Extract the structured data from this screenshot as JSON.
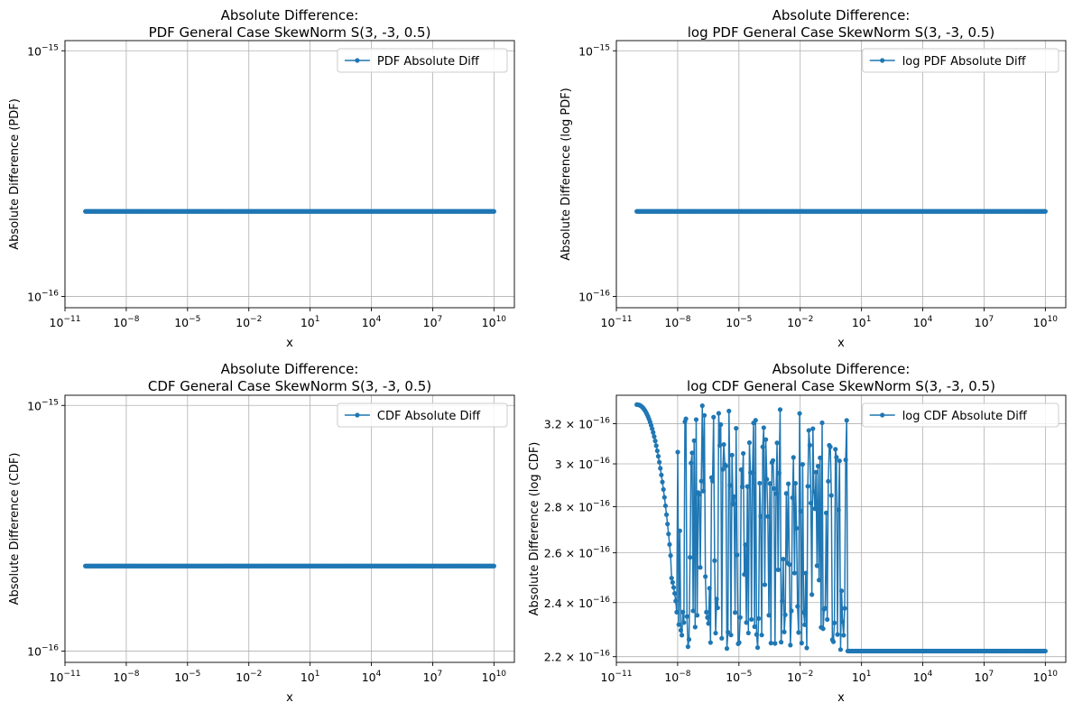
{
  "colors": {
    "series": "#1f77b4",
    "grid": "#b0b0b0",
    "frame": "#000000",
    "legend_border": "#cccccc"
  },
  "chart_data": [
    {
      "type": "line",
      "title_lines": [
        "Absolute Difference:",
        "PDF General Case SkewNorm S(3, -3, 0.5)"
      ],
      "xlabel": "x",
      "ylabel": "Absolute Difference (PDF)",
      "xscale": "log",
      "yscale": "log",
      "xlim": [
        1e-11,
        100000000000.0
      ],
      "ylim": [
        9e-17,
        1.1e-15
      ],
      "grid": true,
      "legend_position": "upper right",
      "xticks": [
        {
          "base": "10",
          "exp": "−11",
          "value": 1e-11
        },
        {
          "base": "10",
          "exp": "−8",
          "value": 1e-08
        },
        {
          "base": "10",
          "exp": "−5",
          "value": 1e-05
        },
        {
          "base": "10",
          "exp": "−2",
          "value": 0.01
        },
        {
          "base": "10",
          "exp": "1",
          "value": 10.0
        },
        {
          "base": "10",
          "exp": "4",
          "value": 10000.0
        },
        {
          "base": "10",
          "exp": "7",
          "value": 10000000.0
        },
        {
          "base": "10",
          "exp": "10",
          "value": 10000000000.0
        }
      ],
      "yticks": [
        {
          "base": "10",
          "exp": "−15",
          "value": 1e-15
        },
        {
          "base": "10",
          "exp": "−16",
          "value": 1e-16
        }
      ],
      "series": [
        {
          "name": "PDF Absolute Diff",
          "color": "#1f77b4",
          "pattern": "constant",
          "x_range": [
            1e-10,
            10000000000.0
          ],
          "y_value": 2.22e-16,
          "n_points": 400
        }
      ]
    },
    {
      "type": "line",
      "title_lines": [
        "Absolute Difference:",
        "log PDF General Case SkewNorm S(3, -3, 0.5)"
      ],
      "xlabel": "x",
      "ylabel": "Absolute Difference (log PDF)",
      "xscale": "log",
      "yscale": "log",
      "xlim": [
        1e-11,
        100000000000.0
      ],
      "ylim": [
        9e-17,
        1.1e-15
      ],
      "grid": true,
      "legend_position": "upper right",
      "xticks": [
        {
          "base": "10",
          "exp": "−11",
          "value": 1e-11
        },
        {
          "base": "10",
          "exp": "−8",
          "value": 1e-08
        },
        {
          "base": "10",
          "exp": "−5",
          "value": 1e-05
        },
        {
          "base": "10",
          "exp": "−2",
          "value": 0.01
        },
        {
          "base": "10",
          "exp": "1",
          "value": 10.0
        },
        {
          "base": "10",
          "exp": "4",
          "value": 10000.0
        },
        {
          "base": "10",
          "exp": "7",
          "value": 10000000.0
        },
        {
          "base": "10",
          "exp": "10",
          "value": 10000000000.0
        }
      ],
      "yticks": [
        {
          "base": "10",
          "exp": "−15",
          "value": 1e-15
        },
        {
          "base": "10",
          "exp": "−16",
          "value": 1e-16
        }
      ],
      "series": [
        {
          "name": "log PDF Absolute Diff",
          "color": "#1f77b4",
          "pattern": "constant",
          "x_range": [
            1e-10,
            10000000000.0
          ],
          "y_value": 2.22e-16,
          "n_points": 400
        }
      ]
    },
    {
      "type": "line",
      "title_lines": [
        "Absolute Difference:",
        "CDF General Case SkewNorm S(3, -3, 0.5)"
      ],
      "xlabel": "x",
      "ylabel": "Absolute Difference (CDF)",
      "xscale": "log",
      "yscale": "log",
      "xlim": [
        1e-11,
        100000000000.0
      ],
      "ylim": [
        9e-17,
        1.1e-15
      ],
      "grid": true,
      "legend_position": "upper right",
      "xticks": [
        {
          "base": "10",
          "exp": "−11",
          "value": 1e-11
        },
        {
          "base": "10",
          "exp": "−8",
          "value": 1e-08
        },
        {
          "base": "10",
          "exp": "−5",
          "value": 1e-05
        },
        {
          "base": "10",
          "exp": "−2",
          "value": 0.01
        },
        {
          "base": "10",
          "exp": "1",
          "value": 10.0
        },
        {
          "base": "10",
          "exp": "4",
          "value": 10000.0
        },
        {
          "base": "10",
          "exp": "7",
          "value": 10000000.0
        },
        {
          "base": "10",
          "exp": "10",
          "value": 10000000000.0
        }
      ],
      "yticks": [
        {
          "base": "10",
          "exp": "−15",
          "value": 1e-15
        },
        {
          "base": "10",
          "exp": "−16",
          "value": 1e-16
        }
      ],
      "series": [
        {
          "name": "CDF Absolute Diff",
          "color": "#1f77b4",
          "pattern": "constant",
          "x_range": [
            1e-10,
            10000000000.0
          ],
          "y_value": 2.22e-16,
          "n_points": 400
        }
      ]
    },
    {
      "type": "line",
      "title_lines": [
        "Absolute Difference:",
        "log CDF General Case SkewNorm S(3, -3, 0.5)"
      ],
      "xlabel": "x",
      "ylabel": "Absolute Difference (log CDF)",
      "xscale": "log",
      "yscale": "log",
      "xlim": [
        1e-11,
        100000000000.0
      ],
      "ylim": [
        2.18e-16,
        3.35e-16
      ],
      "grid": true,
      "legend_position": "upper right",
      "xticks": [
        {
          "base": "10",
          "exp": "−11",
          "value": 1e-11
        },
        {
          "base": "10",
          "exp": "−8",
          "value": 1e-08
        },
        {
          "base": "10",
          "exp": "−5",
          "value": 1e-05
        },
        {
          "base": "10",
          "exp": "−2",
          "value": 0.01
        },
        {
          "base": "10",
          "exp": "1",
          "value": 10.0
        },
        {
          "base": "10",
          "exp": "4",
          "value": 10000.0
        },
        {
          "base": "10",
          "exp": "7",
          "value": 10000000.0
        },
        {
          "base": "10",
          "exp": "10",
          "value": 10000000000.0
        }
      ],
      "yticks": [
        {
          "base": "2.2 × 10",
          "exp": "−16",
          "value": 2.2e-16
        },
        {
          "base": "2.4 × 10",
          "exp": "−16",
          "value": 2.4e-16
        },
        {
          "base": "2.6 × 10",
          "exp": "−16",
          "value": 2.6e-16
        },
        {
          "base": "2.8 × 10",
          "exp": "−16",
          "value": 2.8e-16
        },
        {
          "base": "3 × 10",
          "exp": "−16",
          "value": 3e-16
        },
        {
          "base": "3.2 × 10",
          "exp": "−16",
          "value": 3.2e-16
        }
      ],
      "series": [
        {
          "name": "log CDF Absolute Diff",
          "color": "#1f77b4",
          "pattern": "decay_then_oscillate_then_flat",
          "x_range": [
            1e-10,
            10000000000.0
          ],
          "decay": {
            "x_start": 1e-10,
            "x_end": 1e-08,
            "y_start": 3.3e-16,
            "y_end": 2.22e-16
          },
          "oscillation": {
            "x_start": 1e-08,
            "x_end": 2,
            "y_low": 2.22e-16,
            "y_high": 3.3e-16
          },
          "flat": {
            "x_start": 2,
            "x_end": 10000000000.0,
            "y_value": 2.22e-16
          },
          "n_points": 400
        }
      ]
    }
  ]
}
